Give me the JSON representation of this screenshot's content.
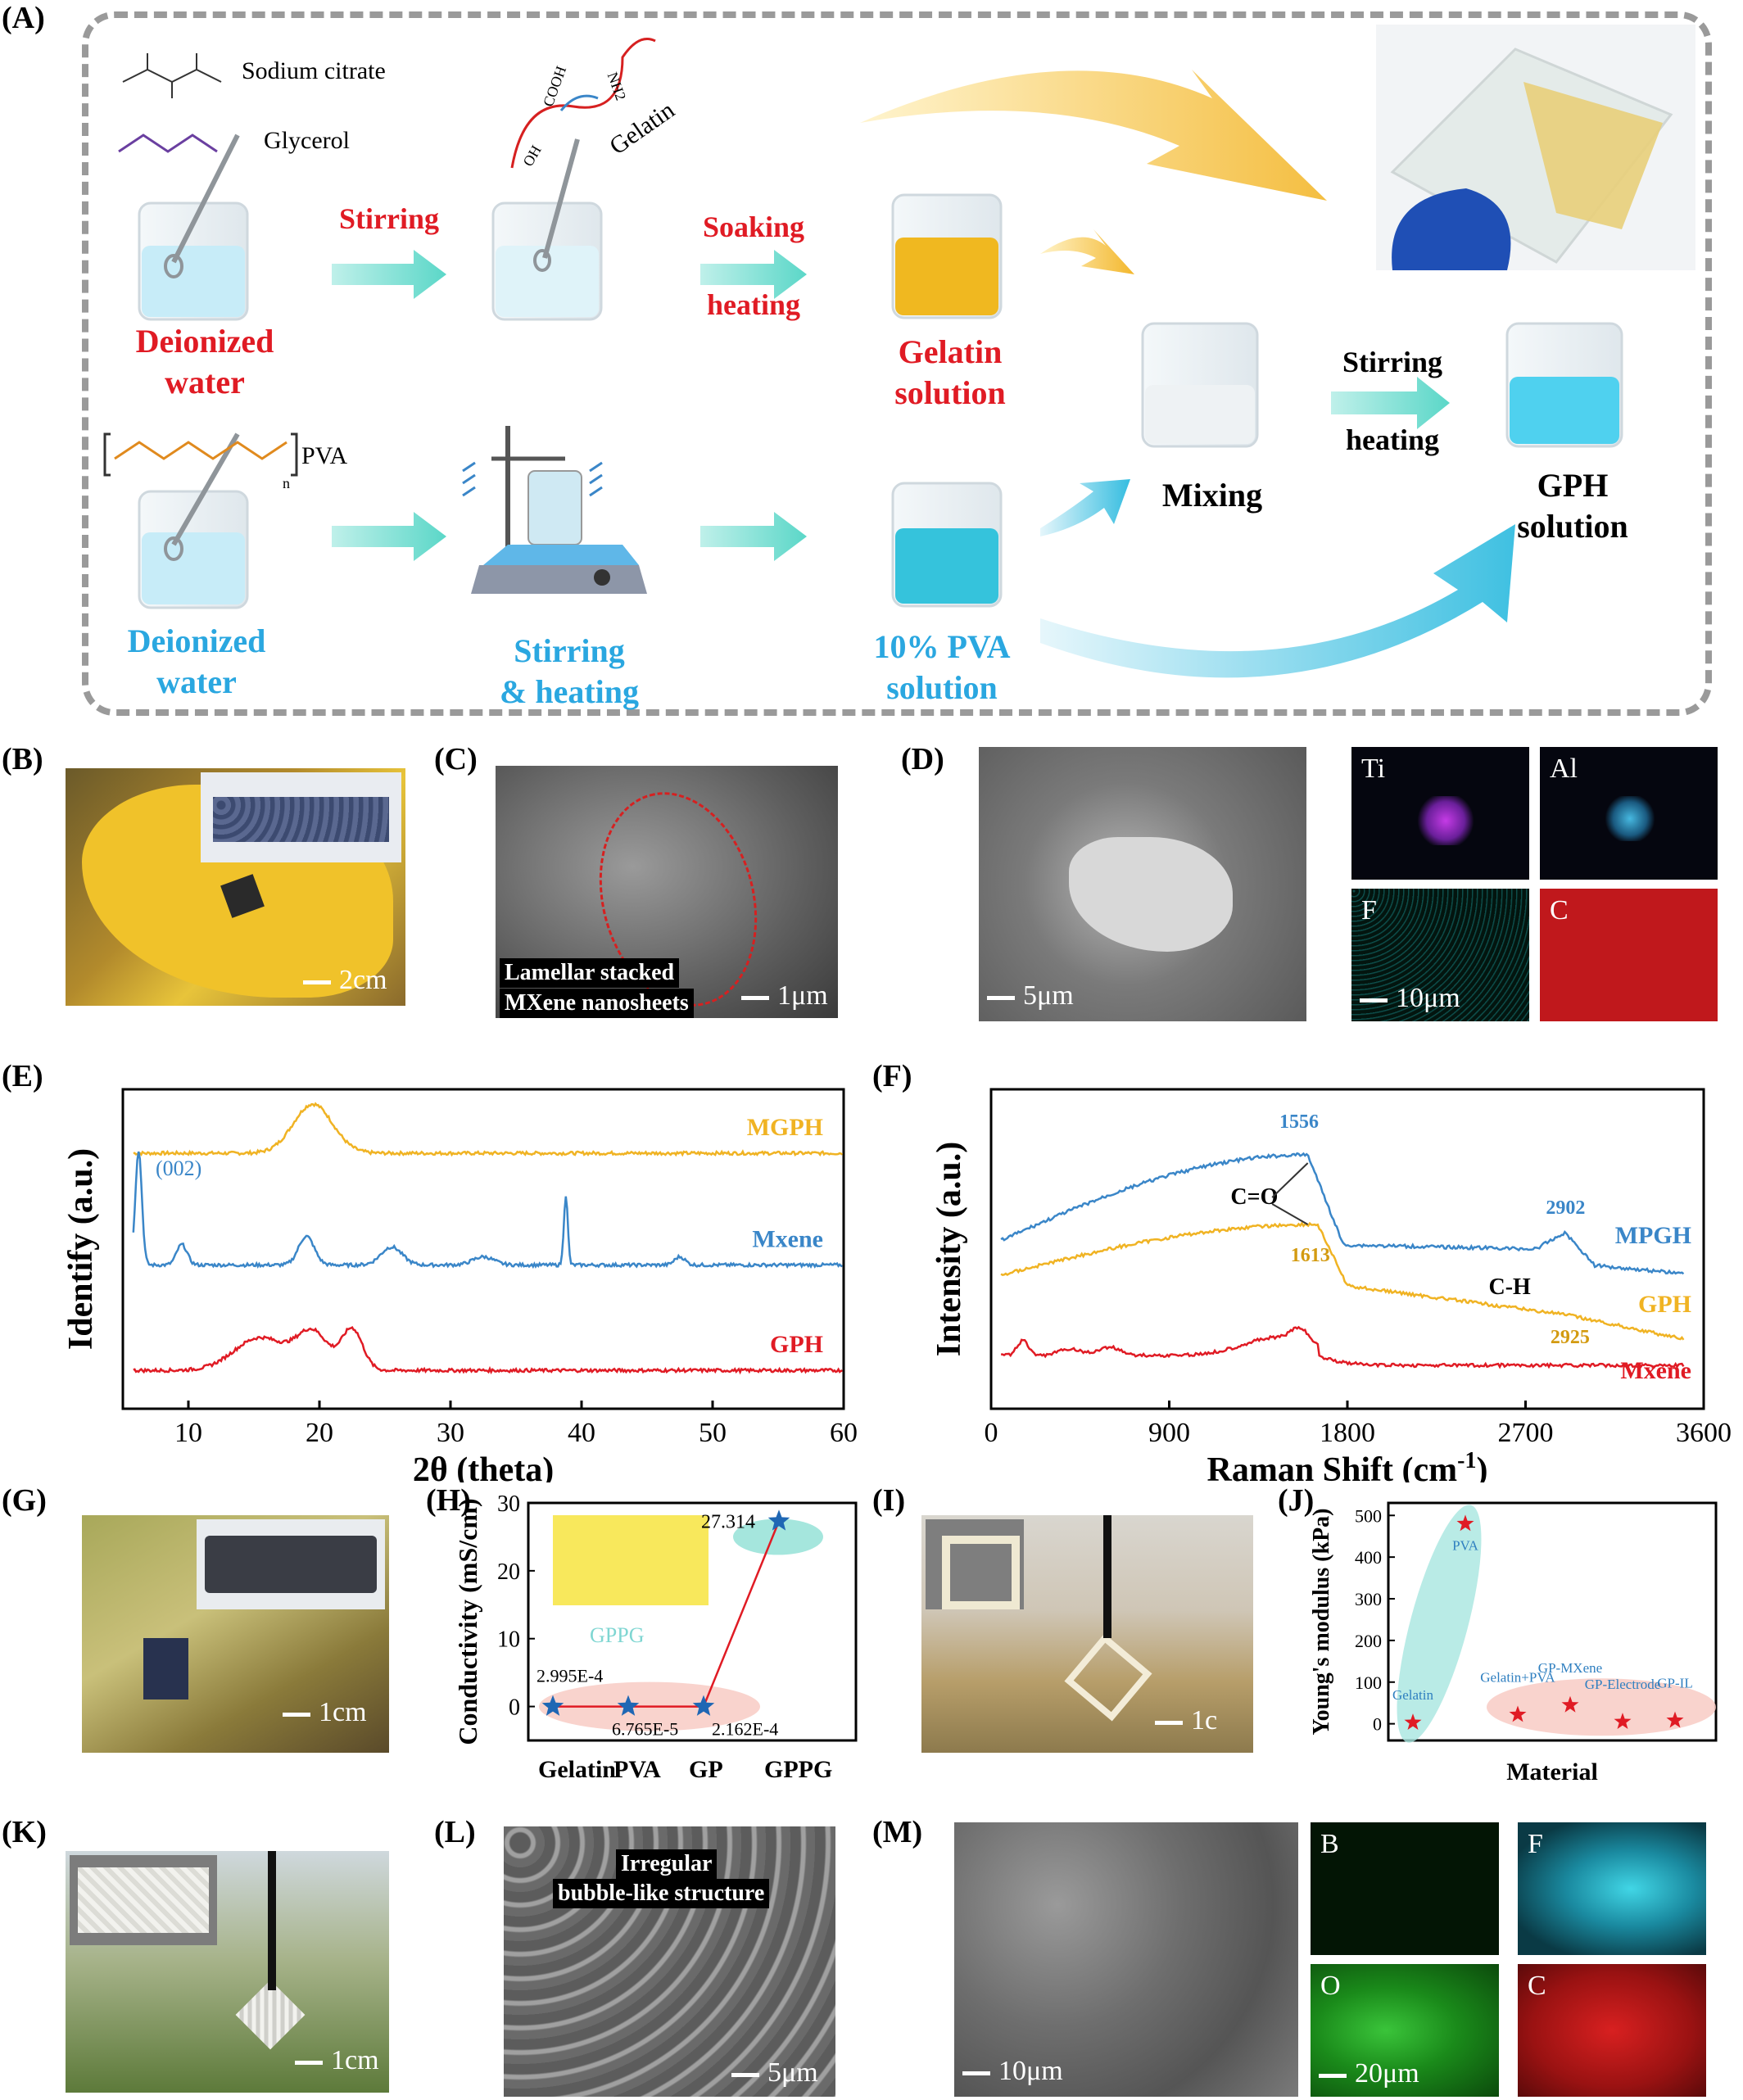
{
  "panels": {
    "A": "(A)",
    "B": "(B)",
    "C": "(C)",
    "D": "(D)",
    "E": "(E)",
    "F": "(F)",
    "G": "(G)",
    "H": "(H)",
    "I": "(I)",
    "J": "(J)",
    "K": "(K)",
    "L": "(L)",
    "M": "(M)"
  },
  "schematic": {
    "sodium_citrate": "Sodium citrate",
    "glycerol": "Glycerol",
    "gelatin": "Gelatin",
    "pva": "PVA",
    "stirring": "Stirring",
    "soaking": "Soaking",
    "heating": "heating",
    "deionized_water_top": [
      "Deionized",
      "water"
    ],
    "gelatin_solution": [
      "Gelatin",
      "solution"
    ],
    "mixing": "Mixing",
    "stirring2": "Stirring",
    "heating2": "heating",
    "gph_solution": [
      "GPH",
      "solution"
    ],
    "deionized_water_bottom": [
      "Deionized",
      "water"
    ],
    "stirring_heating": [
      "Stirring",
      "& heating"
    ],
    "pva_solution": [
      "10% PVA",
      "solution"
    ],
    "mol_cooh": "COOH",
    "mol_nh2": "NH2",
    "mol_oh": "OH",
    "mol_n": "n"
  },
  "B": {
    "scale": "2cm"
  },
  "C": {
    "tag1": "Lamellar stacked",
    "tag2": "MXene nanosheets",
    "scale": "1μm"
  },
  "D": {
    "scale": "5μm",
    "eds": [
      "Ti",
      "Al",
      "F",
      "C"
    ],
    "eds_scale": "10μm"
  },
  "G": {
    "scale": "1cm"
  },
  "I": {
    "scale": "1c"
  },
  "K": {
    "scale": "1cm"
  },
  "L": {
    "tag1": "Irregular",
    "tag2": "bubble-like structure",
    "scale": "5μm"
  },
  "M": {
    "scale": "10μm",
    "eds": [
      "B",
      "F",
      "O",
      "C"
    ],
    "eds_scale": "20μm"
  },
  "chart_data": [
    {
      "id": "E",
      "type": "line",
      "xlabel": "2θ (theta)",
      "ylabel": "Identify (a.u.)",
      "xlim": [
        5,
        60
      ],
      "xticks": [
        10,
        20,
        30,
        40,
        50,
        60
      ],
      "series": [
        {
          "name": "MGPH",
          "color": "#f0b323",
          "peaks": [
            [
              19.5,
              1.5,
              60
            ]
          ],
          "offset": 0.8
        },
        {
          "name": "Mxene",
          "color": "#3a86c8",
          "peaks": [
            [
              6.2,
              0.25,
              140
            ],
            [
              9.5,
              0.4,
              25
            ],
            [
              19,
              0.6,
              35
            ],
            [
              25.5,
              0.8,
              22
            ],
            [
              32.5,
              0.8,
              10
            ],
            [
              38.8,
              0.15,
              85
            ],
            [
              47.5,
              0.4,
              10
            ]
          ],
          "offset": 0.45
        },
        {
          "name": "GPH",
          "color": "#e01b24",
          "peaks": [
            [
              15.5,
              2.0,
              40
            ],
            [
              19.5,
              1.2,
              45
            ],
            [
              22.5,
              0.8,
              50
            ]
          ],
          "offset": 0.12
        }
      ],
      "annotations": [
        "(002)"
      ]
    },
    {
      "id": "F",
      "type": "line",
      "xlabel": "Raman Shift (cm",
      "xlabel_sup": "-1",
      "xlabel_end": ")",
      "ylabel": "Intensity (a.u.)",
      "xlim": [
        0,
        3600
      ],
      "xticks": [
        0,
        900,
        1800,
        2700,
        3600
      ],
      "series": [
        {
          "name": "MPGH",
          "color": "#3a86c8"
        },
        {
          "name": "GPH",
          "color": "#f0b323"
        },
        {
          "name": "Mxene",
          "color": "#e01b24"
        }
      ],
      "annotations": [
        "1556",
        "2902",
        "C=O",
        "1613",
        "C-H",
        "2925"
      ]
    },
    {
      "id": "H",
      "type": "scatter",
      "xlabel": "",
      "ylabel": "Conductivity (mS/cm)",
      "categories": [
        "Gelatin",
        "PVA",
        "GP",
        "GPPG"
      ],
      "values": [
        0.0002995,
        6.765e-05,
        0.0002162,
        27.314
      ],
      "value_labels": [
        "2.995E-4",
        "6.765E-5",
        "2.162E-4",
        "27.314"
      ],
      "ylim": [
        -5,
        30
      ],
      "yticks": [
        0,
        10,
        20,
        30
      ],
      "inset_label": "GPPG"
    },
    {
      "id": "J",
      "type": "scatter",
      "xlabel": "Material",
      "ylabel": "Young's modulus (kPa)",
      "categories": [
        "Gelatin",
        "PVA",
        "Gelatin+PVA",
        "GP-MXene",
        "GP-Electrode",
        "GP-IL"
      ],
      "values": [
        3,
        480,
        22,
        45,
        5,
        8
      ],
      "ylim": [
        -40,
        530
      ],
      "yticks": [
        0,
        100,
        200,
        300,
        400,
        500
      ]
    }
  ]
}
